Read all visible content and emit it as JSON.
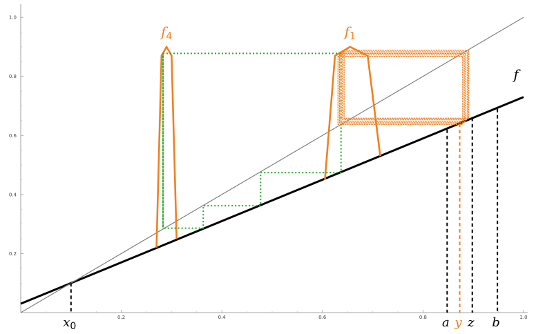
{
  "chart_data": {
    "type": "line",
    "xlim": [
      0.0,
      1.0
    ],
    "ylim": [
      0.0,
      1.04
    ],
    "x_ticks": [
      0.2,
      0.4,
      0.6,
      0.8,
      1.0
    ],
    "x_tick_labels": [
      "0.2",
      "0.4",
      "0.6",
      "0.8",
      "1.0"
    ],
    "y_ticks": [
      0.2,
      0.4,
      0.6,
      0.8,
      1.0
    ],
    "y_tick_labels": [
      "0.2",
      "0.4",
      "0.6",
      "0.8",
      "1.0"
    ],
    "grid": false,
    "series": [
      {
        "name": "f",
        "color": "#000000",
        "style": "solid",
        "x": [
          0.0,
          1.0
        ],
        "y": [
          0.03,
          0.73
        ]
      },
      {
        "color": "#808080",
        "style": "solid",
        "x": [
          0.0,
          1.0
        ],
        "y": [
          0.0,
          1.0
        ]
      },
      {
        "name": "f_4",
        "color": "#f08020",
        "style": "solid",
        "x": [
          0.27,
          0.28,
          0.29,
          0.3,
          0.31
        ],
        "y": [
          0.22,
          0.87,
          0.9,
          0.87,
          0.25
        ]
      },
      {
        "name": "f_1",
        "color": "#f08020",
        "style": "solid",
        "x": [
          0.605,
          0.625,
          0.655,
          0.69,
          0.715
        ],
        "y": [
          0.45,
          0.87,
          0.9,
          0.87,
          0.53
        ]
      },
      {
        "color": "#22aa22",
        "style": "dotted",
        "x": [
          0.283,
          0.283,
          0.363,
          0.363,
          0.477,
          0.477,
          0.637,
          0.637,
          0.283,
          0.283
        ],
        "y": [
          0.878,
          0.286,
          0.286,
          0.362,
          0.362,
          0.474,
          0.474,
          0.878,
          0.878,
          0.286
        ]
      },
      {
        "color": "#f08020",
        "style": "dotted-band",
        "x": [
          0.637,
          0.885,
          0.885,
          0.637,
          0.637
        ],
        "y": [
          0.878,
          0.878,
          0.648,
          0.648,
          0.878
        ]
      }
    ],
    "vlines": [
      {
        "label": "x_0",
        "x": 0.1,
        "y_top": 0.1,
        "color": "#000000"
      },
      {
        "label": "a",
        "x": 0.848,
        "y_top": 0.62,
        "color": "#000000"
      },
      {
        "label": "y",
        "x": 0.873,
        "y_top": 0.64,
        "color": "#f08020"
      },
      {
        "label": "z",
        "x": 0.898,
        "y_top": 0.66,
        "color": "#000000"
      },
      {
        "label": "b",
        "x": 0.948,
        "y_top": 0.69,
        "color": "#000000"
      }
    ],
    "annotations": [
      {
        "text": "f",
        "at": [
          0.985,
          0.79
        ],
        "color": "#000000"
      },
      {
        "text": "f",
        "sub": "4",
        "at": [
          0.29,
          0.935
        ],
        "color": "#f08020"
      },
      {
        "text": "f",
        "sub": "1",
        "at": [
          0.655,
          0.935
        ],
        "color": "#f08020"
      }
    ]
  }
}
